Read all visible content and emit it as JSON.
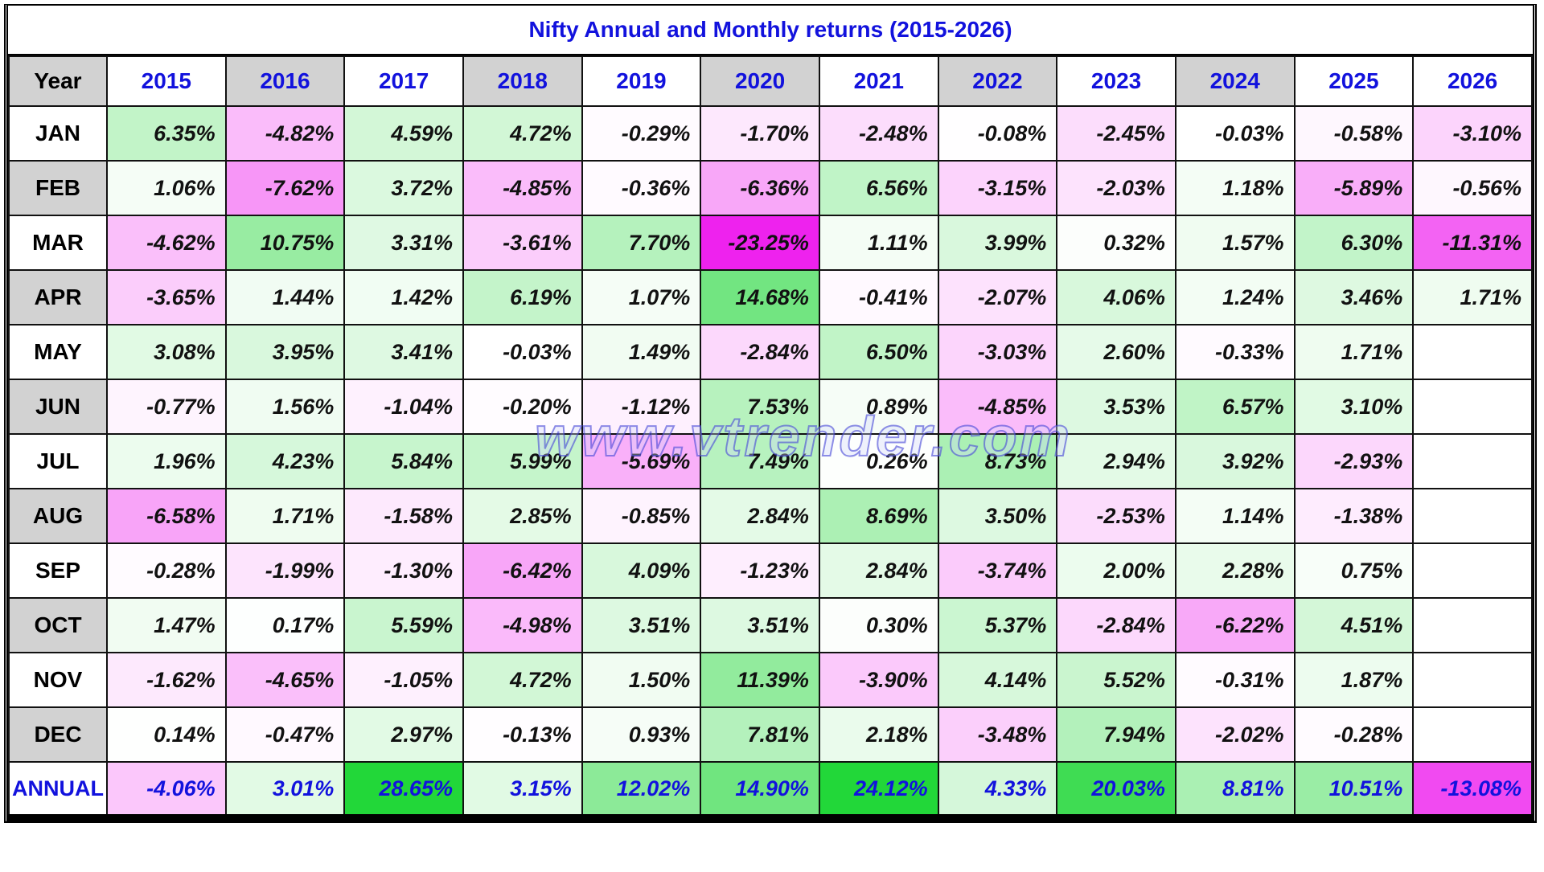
{
  "title": "Nifty Annual and Monthly returns (2015-2026)",
  "watermark": "www.vtrender.com",
  "colors": {
    "title_blue": "#1212dd",
    "year_blue": "#1212dd",
    "annual_blue": "#1212dd",
    "header_gray": "#d2d2d2",
    "positive_max": "#22d739",
    "negative_max": "#ee22ee",
    "empty_cell": "#ffffff"
  },
  "chart_data": {
    "type": "heatmap",
    "title": "Nifty Annual and Monthly returns (2015-2026)",
    "row_header": "Year",
    "value_format": "percent",
    "color_scale": {
      "positive_full_at": 23,
      "negative_full_at": 16
    },
    "columns": [
      "2015",
      "2016",
      "2017",
      "2018",
      "2019",
      "2020",
      "2021",
      "2022",
      "2023",
      "2024",
      "2025",
      "2026"
    ],
    "rows": [
      {
        "label": "JAN",
        "values": [
          6.35,
          -4.82,
          4.59,
          4.72,
          -0.29,
          -1.7,
          -2.48,
          -0.08,
          -2.45,
          -0.03,
          -0.58,
          -3.1
        ]
      },
      {
        "label": "FEB",
        "values": [
          1.06,
          -7.62,
          3.72,
          -4.85,
          -0.36,
          -6.36,
          6.56,
          -3.15,
          -2.03,
          1.18,
          -5.89,
          -0.56
        ]
      },
      {
        "label": "MAR",
        "values": [
          -4.62,
          10.75,
          3.31,
          -3.61,
          7.7,
          -23.25,
          1.11,
          3.99,
          0.32,
          1.57,
          6.3,
          -11.31
        ]
      },
      {
        "label": "APR",
        "values": [
          -3.65,
          1.44,
          1.42,
          6.19,
          1.07,
          14.68,
          -0.41,
          -2.07,
          4.06,
          1.24,
          3.46,
          1.71
        ]
      },
      {
        "label": "MAY",
        "values": [
          3.08,
          3.95,
          3.41,
          -0.03,
          1.49,
          -2.84,
          6.5,
          -3.03,
          2.6,
          -0.33,
          1.71,
          null
        ]
      },
      {
        "label": "JUN",
        "values": [
          -0.77,
          1.56,
          -1.04,
          -0.2,
          -1.12,
          7.53,
          0.89,
          -4.85,
          3.53,
          6.57,
          3.1,
          null
        ]
      },
      {
        "label": "JUL",
        "values": [
          1.96,
          4.23,
          5.84,
          5.99,
          -5.69,
          7.49,
          0.26,
          8.73,
          2.94,
          3.92,
          -2.93,
          null
        ]
      },
      {
        "label": "AUG",
        "values": [
          -6.58,
          1.71,
          -1.58,
          2.85,
          -0.85,
          2.84,
          8.69,
          3.5,
          -2.53,
          1.14,
          -1.38,
          null
        ]
      },
      {
        "label": "SEP",
        "values": [
          -0.28,
          -1.99,
          -1.3,
          -6.42,
          4.09,
          -1.23,
          2.84,
          -3.74,
          2.0,
          2.28,
          0.75,
          null
        ]
      },
      {
        "label": "OCT",
        "values": [
          1.47,
          0.17,
          5.59,
          -4.98,
          3.51,
          3.51,
          0.3,
          5.37,
          -2.84,
          -6.22,
          4.51,
          null
        ]
      },
      {
        "label": "NOV",
        "values": [
          -1.62,
          -4.65,
          -1.05,
          4.72,
          1.5,
          11.39,
          -3.9,
          4.14,
          5.52,
          -0.31,
          1.87,
          null
        ]
      },
      {
        "label": "DEC",
        "values": [
          0.14,
          -0.47,
          2.97,
          -0.13,
          0.93,
          7.81,
          2.18,
          -3.48,
          7.94,
          -2.02,
          -0.28,
          null
        ]
      },
      {
        "label": "ANNUAL",
        "values": [
          -4.06,
          3.01,
          28.65,
          3.15,
          12.02,
          14.9,
          24.12,
          4.33,
          20.03,
          8.81,
          10.51,
          -13.08
        ]
      }
    ]
  }
}
